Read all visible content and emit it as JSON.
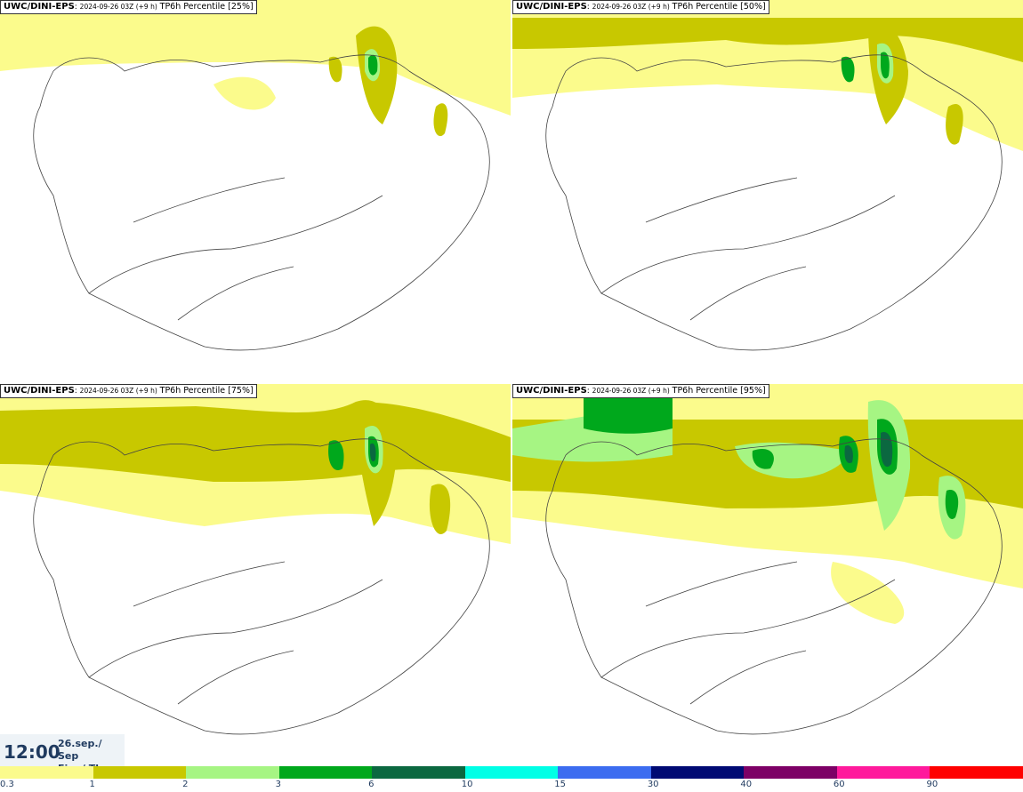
{
  "panels": [
    {
      "model": "UWC/DINI-EPS",
      "run": "2024-09-26 03Z (+9 h)",
      "param": "TP6h Percentile [25%]"
    },
    {
      "model": "UWC/DINI-EPS",
      "run": "2024-09-26 03Z (+9 h)",
      "param": "TP6h Percentile [50%]"
    },
    {
      "model": "UWC/DINI-EPS",
      "run": "2024-09-26 03Z (+9 h)",
      "param": "TP6h Percentile [75%]"
    },
    {
      "model": "UWC/DINI-EPS",
      "run": "2024-09-26 03Z (+9 h)",
      "param": "TP6h Percentile [95%]"
    }
  ],
  "valid_time": {
    "time": "12:00",
    "date": "26.sep./ Sep",
    "day": "Fim./ Thu"
  },
  "legend": {
    "colors": [
      "#fbfb8c",
      "#c8c800",
      "#a6f583",
      "#00a81c",
      "#0b6840",
      "#00ffe6",
      "#3c6cf0",
      "#000a73",
      "#7d0066",
      "#ff1a9c",
      "#ff0000"
    ],
    "ticks": [
      "0.3",
      "1",
      "2",
      "3",
      "6",
      "10",
      "15",
      "30",
      "40",
      "60",
      "90"
    ]
  }
}
